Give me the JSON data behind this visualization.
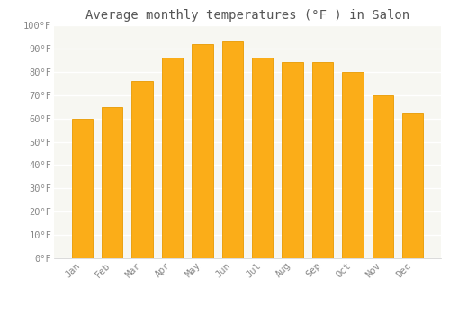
{
  "title": "Average monthly temperatures (°F ) in Salon",
  "months": [
    "Jan",
    "Feb",
    "Mar",
    "Apr",
    "May",
    "Jun",
    "Jul",
    "Aug",
    "Sep",
    "Oct",
    "Nov",
    "Dec"
  ],
  "values": [
    60,
    65,
    76,
    86,
    92,
    93,
    86,
    84,
    84,
    80,
    70,
    62
  ],
  "bar_color": "#FBAD18",
  "bar_edge_color": "#E89A00",
  "ylim": [
    0,
    100
  ],
  "yticks": [
    0,
    10,
    20,
    30,
    40,
    50,
    60,
    70,
    80,
    90,
    100
  ],
  "ytick_labels": [
    "0°F",
    "10°F",
    "20°F",
    "30°F",
    "40°F",
    "50°F",
    "60°F",
    "70°F",
    "80°F",
    "90°F",
    "100°F"
  ],
  "bg_color": "#ffffff",
  "plot_bg_color": "#f7f7f2",
  "grid_color": "#ffffff",
  "title_fontsize": 10,
  "tick_fontsize": 7.5,
  "tick_color": "#888888",
  "bar_width": 0.7
}
